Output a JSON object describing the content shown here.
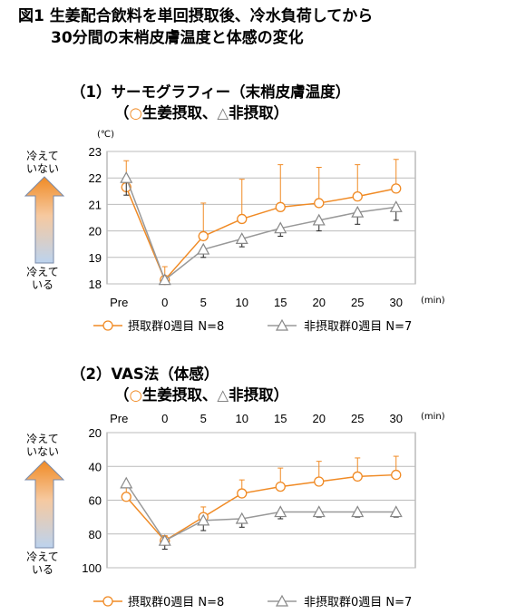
{
  "figure_title_line1": "図1 生姜配合飲料を単回摂取後、冷水負荷してから",
  "figure_title_line2": "30分間の末梢皮膚温度と体感の変化",
  "sections": [
    {
      "title_line1": "（1）サーモグラフィー（末梢皮膚温度）",
      "title_line2_prefix": "（",
      "circle_symbol": "○",
      "ginger_label": "生姜摂取、",
      "triangle_symbol": "△",
      "nonintake_label": "非摂取）"
    },
    {
      "title_line1": "（2）VAS法（体感）",
      "title_line2_prefix": "（",
      "circle_symbol": "○",
      "ginger_label": "生姜摂取、",
      "triangle_symbol": "△",
      "nonintake_label": "非摂取）"
    }
  ],
  "side_labels": {
    "not_cold_1": "冷えて",
    "not_cold_2": "いない",
    "cold_1": "冷えて",
    "cold_2": "いる"
  },
  "colors": {
    "ginger": "#f08a24",
    "nonintake": "#999999",
    "grid": "#bbbbbb",
    "arrow_top": "#f08a24",
    "arrow_bottom": "#bcd3ee"
  },
  "chart_data": [
    {
      "type": "line",
      "unit_label": "(℃)",
      "x_unit": "(min)",
      "categories": [
        "Pre",
        "0",
        "5",
        "10",
        "15",
        "20",
        "25",
        "30"
      ],
      "ylim": [
        18,
        23
      ],
      "yticks": [
        "18",
        "19",
        "20",
        "21",
        "22",
        "23"
      ],
      "grid": true,
      "y_inverted": false,
      "series": [
        {
          "name": "摂取群0週目 N=8",
          "marker": "circle",
          "values": [
            21.65,
            18.15,
            19.8,
            20.45,
            20.9,
            21.05,
            21.3,
            21.6
          ],
          "error_upper": [
            22.65,
            18.65,
            21.05,
            21.95,
            22.5,
            22.4,
            22.5,
            22.7
          ],
          "error_lower": [
            null,
            null,
            null,
            null,
            null,
            null,
            null,
            null
          ]
        },
        {
          "name": "非摂取群0週目 N=7",
          "marker": "triangle",
          "values": [
            22.0,
            18.15,
            19.3,
            19.7,
            20.1,
            20.4,
            20.7,
            20.9
          ],
          "error_upper": [
            null,
            null,
            null,
            null,
            null,
            null,
            null,
            null
          ],
          "error_lower": [
            21.35,
            null,
            19.0,
            19.4,
            19.8,
            20.0,
            20.25,
            20.4
          ]
        }
      ]
    },
    {
      "type": "line",
      "unit_label": "",
      "x_unit": "(min)",
      "categories": [
        "Pre",
        "0",
        "5",
        "10",
        "15",
        "20",
        "25",
        "30"
      ],
      "ylim": [
        20,
        100
      ],
      "yticks": [
        "20",
        "40",
        "60",
        "80",
        "100"
      ],
      "grid": true,
      "y_inverted": true,
      "series": [
        {
          "name": "摂取群0週目 N=8",
          "marker": "circle",
          "values": [
            58,
            84,
            70,
            56,
            52,
            49,
            46,
            45
          ],
          "error_upper": [
            52,
            81,
            64,
            48,
            41,
            37,
            35,
            34
          ],
          "error_lower": [
            null,
            null,
            null,
            null,
            null,
            null,
            null,
            null
          ]
        },
        {
          "name": "非摂取群0週目 N=7",
          "marker": "triangle",
          "values": [
            50,
            84,
            72,
            71,
            67,
            67,
            67,
            67
          ],
          "error_upper": [
            null,
            null,
            null,
            null,
            null,
            null,
            null,
            null
          ],
          "error_lower": [
            null,
            89,
            78,
            76,
            71,
            70,
            70,
            70
          ]
        }
      ]
    }
  ]
}
